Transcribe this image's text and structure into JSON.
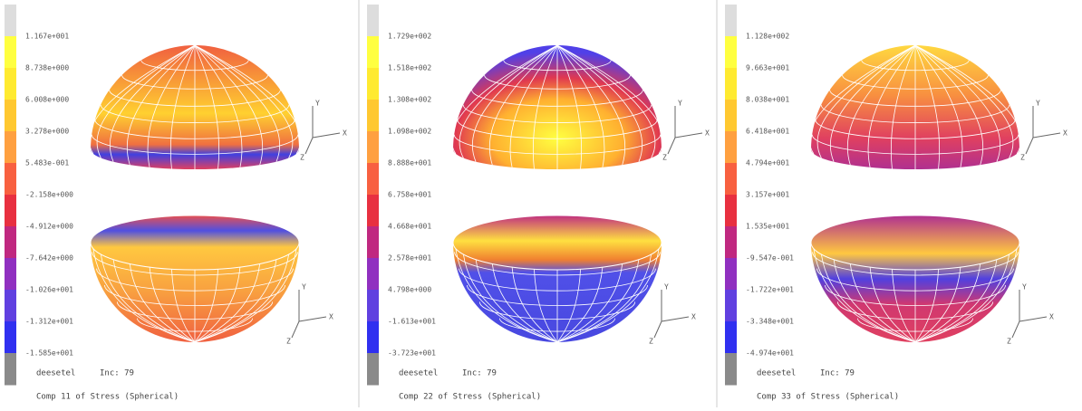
{
  "panels": [
    {
      "scale_labels": [
        "1.167e+001",
        "8.738e+000",
        "6.008e+000",
        "3.278e+000",
        "5.483e-001",
        "-2.158e+000",
        "-4.912e+000",
        "-7.642e+000",
        "-1.026e+001",
        "-1.312e+001",
        "-1.585e+001"
      ],
      "job": "deesetel",
      "increment": "Inc:  79",
      "caption": "Comp 11 of Stress (Spherical)",
      "axis_labels": [
        "Y",
        "X",
        "Z"
      ]
    },
    {
      "scale_labels": [
        "1.729e+002",
        "1.518e+002",
        "1.308e+002",
        "1.098e+002",
        "8.888e+001",
        "6.758e+001",
        "4.668e+001",
        "2.578e+001",
        "4.798e+000",
        "-1.613e+001",
        "-3.723e+001"
      ],
      "job": "deesetel",
      "increment": "Inc:  79",
      "caption": "Comp 22 of Stress (Spherical)",
      "axis_labels": [
        "Y",
        "X",
        "Z"
      ]
    },
    {
      "scale_labels": [
        "1.128e+002",
        "9.663e+001",
        "8.038e+001",
        "6.418e+001",
        "4.794e+001",
        "3.157e+001",
        "1.535e+001",
        "-9.547e-001",
        "-1.722e+001",
        "-3.348e+001",
        "-4.974e+001"
      ],
      "job": "deesetel",
      "increment": "Inc:  79",
      "caption": "Comp 33 of Stress (Spherical)",
      "axis_labels": [
        "Y",
        "X",
        "Z"
      ]
    }
  ]
}
